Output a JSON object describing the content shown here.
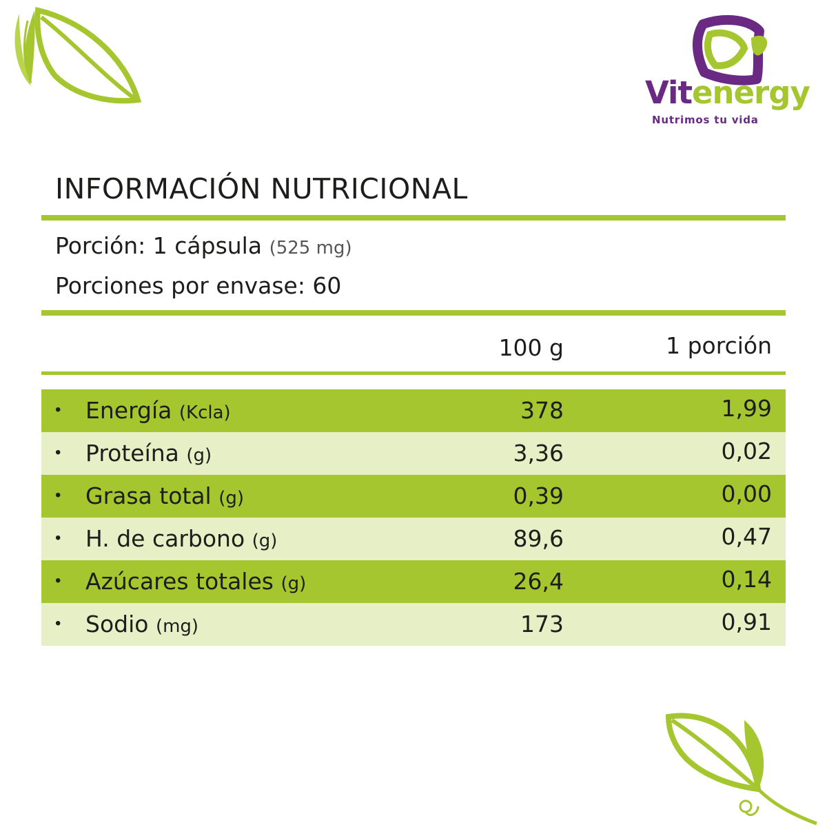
{
  "brand": {
    "name_part1": "Vit",
    "name_part2": "energy",
    "tagline": "Nutrimos tu vida",
    "colors": {
      "purple": "#6a2a84",
      "green": "#a5c62f",
      "light_green": "#e6efc5"
    }
  },
  "title": "INFORMACIÓN NUTRICIONAL",
  "serving": {
    "label": "Porción: 1 cápsula",
    "detail": "(525 mg)",
    "per_container": "Porciones por envase: 60"
  },
  "columns": {
    "per100": "100 g",
    "per_portion": "1 porción"
  },
  "nutrients": [
    {
      "name": "Energía",
      "unit": "(Kcla)",
      "per100": "378",
      "per_portion": "1,99"
    },
    {
      "name": "Proteína",
      "unit": "(g)",
      "per100": "3,36",
      "per_portion": "0,02"
    },
    {
      "name": "Grasa total",
      "unit": "(g)",
      "per100": "0,39",
      "per_portion": "0,00"
    },
    {
      "name": "H. de carbono",
      "unit": "(g)",
      "per100": "89,6",
      "per_portion": "0,47"
    },
    {
      "name": "Azúcares totales",
      "unit": "(g)",
      "per100": "26,4",
      "per_portion": "0,14"
    },
    {
      "name": "Sodio",
      "unit": "(mg)",
      "per100": "173",
      "per_portion": "0,91"
    }
  ],
  "decor": {
    "top_left": "leaf-icon",
    "bottom_right": "leaf-sprout-icon"
  }
}
